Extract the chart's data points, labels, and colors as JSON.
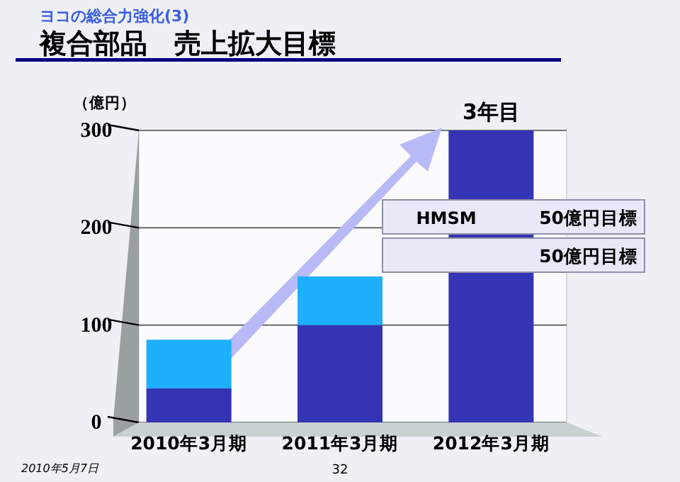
{
  "chart_data": {
    "type": "bar",
    "stacked": true,
    "subtitle": "ヨコの総合力強化(3)",
    "title": "複合部品　売上拡大目標",
    "ylabel": "（億円）",
    "categories": [
      "2010年3月期",
      "2011年3月期",
      "2012年3月期"
    ],
    "series": [
      {
        "color": "#3434b4",
        "values": [
          35,
          100,
          300
        ]
      },
      {
        "color": "#1eb0fc",
        "values": [
          50,
          50,
          null
        ]
      }
    ],
    "ylim": [
      0,
      300
    ],
    "yticks": [
      0,
      100,
      200,
      300
    ],
    "grid": "y",
    "annotations": [
      {
        "text": "3年目",
        "x": "2012年3月期",
        "y": 300
      },
      "HMSM",
      "50億円目標",
      "50億円目標",
      "2010年5月7日",
      "32"
    ]
  }
}
